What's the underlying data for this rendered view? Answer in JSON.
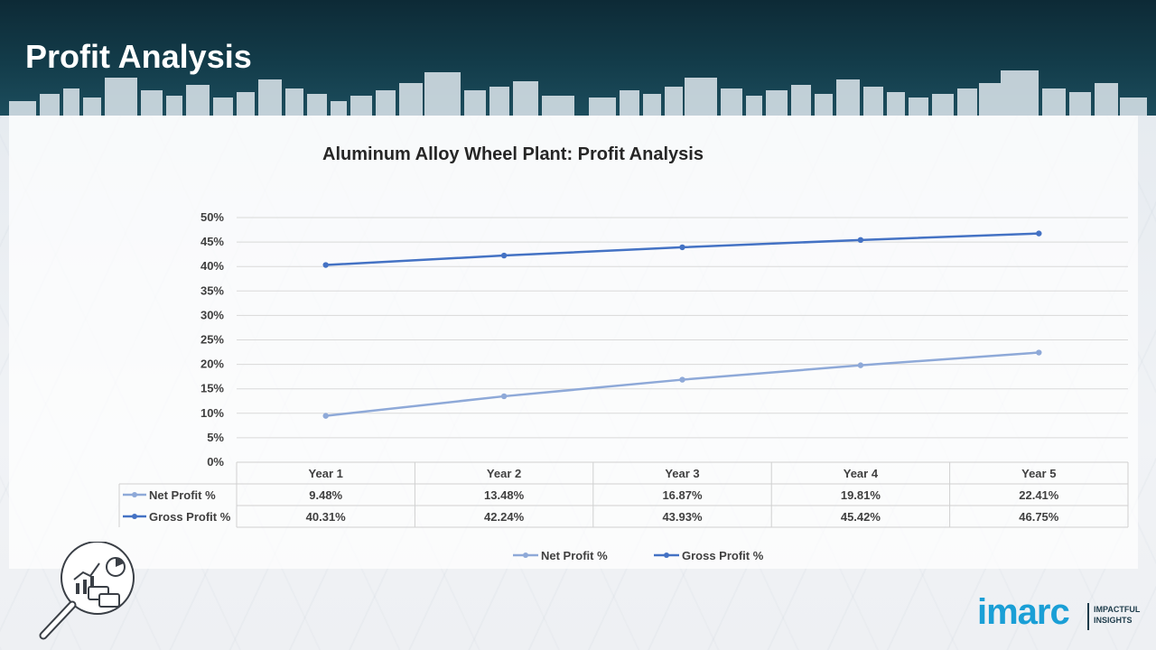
{
  "page": {
    "title": "Profit Analysis"
  },
  "brand": {
    "logo_text": "imarc",
    "tagline_line1": "IMPACTFUL",
    "tagline_line2": "INSIGHTS",
    "logo_color": "#1a9fd6"
  },
  "icons": [
    "magnifier-analytics-icon"
  ],
  "chart_data": {
    "type": "line",
    "title": "Aluminum Alloy Wheel Plant: Profit Analysis",
    "categories": [
      "Year 1",
      "Year 2",
      "Year 3",
      "Year 4",
      "Year 5"
    ],
    "series": [
      {
        "name": "Net Profit %",
        "values": [
          9.48,
          13.48,
          16.87,
          19.81,
          22.41
        ],
        "labels": [
          "9.48%",
          "13.48%",
          "16.87%",
          "19.81%",
          "22.41%"
        ],
        "color": "#8ea9d8"
      },
      {
        "name": "Gross Profit %",
        "values": [
          40.31,
          42.24,
          43.93,
          45.42,
          46.75
        ],
        "labels": [
          "40.31%",
          "42.24%",
          "43.93%",
          "45.42%",
          "46.75%"
        ],
        "color": "#4472c4"
      }
    ],
    "ylim": [
      0,
      50
    ],
    "yticks": [
      "0%",
      "5%",
      "10%",
      "15%",
      "20%",
      "25%",
      "30%",
      "35%",
      "40%",
      "45%",
      "50%"
    ],
    "xlabel": "",
    "ylabel": "",
    "grid": true,
    "legend": "bottom",
    "data_table": true
  }
}
